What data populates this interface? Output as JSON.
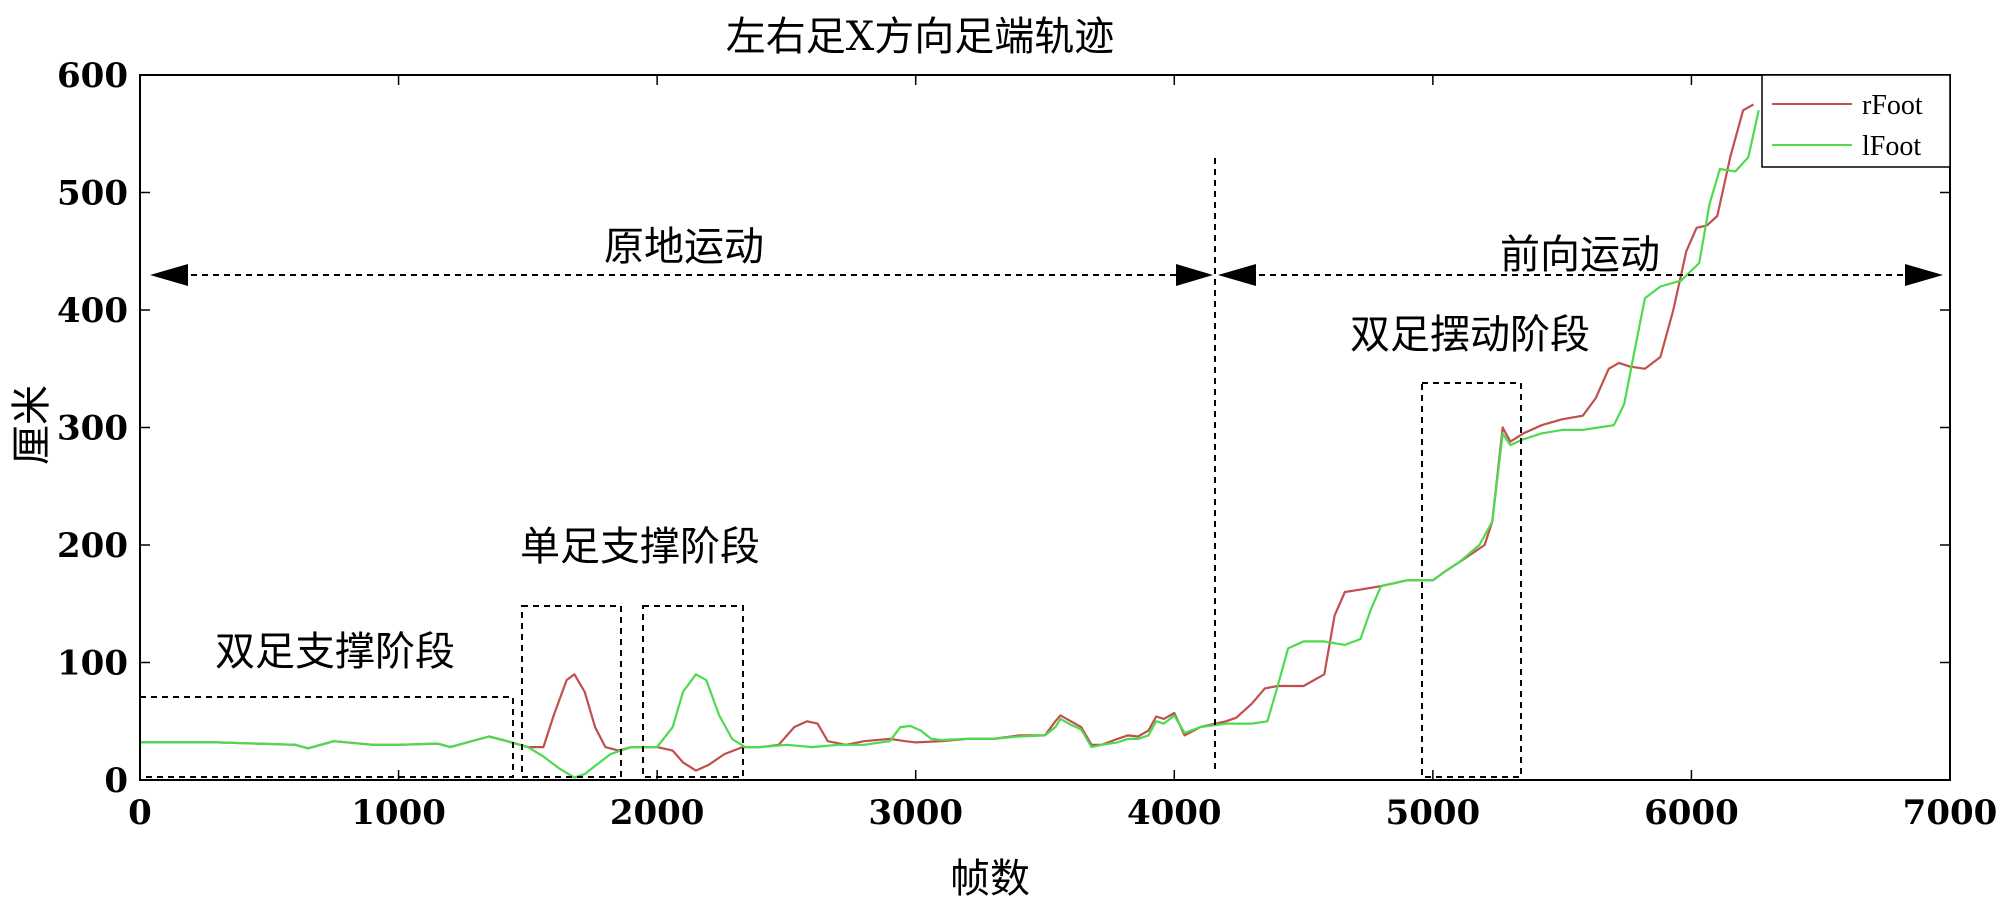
{
  "chart_data": {
    "type": "line",
    "title": "左右足X方向足端轨迹",
    "xlabel": "帧数",
    "ylabel": "厘米",
    "xlim": [
      0,
      7000
    ],
    "ylim": [
      0,
      600
    ],
    "xticks": [
      0,
      1000,
      2000,
      3000,
      4000,
      5000,
      6000,
      7000
    ],
    "yticks": [
      0,
      100,
      200,
      300,
      400,
      500,
      600
    ],
    "grid": false,
    "legend": "top-right",
    "series": [
      {
        "name": "rFoot",
        "color": "#c0504d",
        "points": [
          [
            0,
            32
          ],
          [
            300,
            32
          ],
          [
            600,
            30
          ],
          [
            650,
            27
          ],
          [
            750,
            33
          ],
          [
            900,
            30
          ],
          [
            1000,
            30
          ],
          [
            1150,
            31
          ],
          [
            1200,
            28
          ],
          [
            1300,
            34
          ],
          [
            1350,
            37
          ],
          [
            1420,
            33
          ],
          [
            1500,
            28
          ],
          [
            1560,
            28
          ],
          [
            1600,
            55
          ],
          [
            1650,
            85
          ],
          [
            1680,
            90
          ],
          [
            1720,
            75
          ],
          [
            1760,
            45
          ],
          [
            1800,
            28
          ],
          [
            1850,
            25
          ],
          [
            1900,
            28
          ],
          [
            2000,
            28
          ],
          [
            2060,
            25
          ],
          [
            2100,
            15
          ],
          [
            2150,
            8
          ],
          [
            2200,
            13
          ],
          [
            2260,
            22
          ],
          [
            2330,
            28
          ],
          [
            2400,
            28
          ],
          [
            2470,
            30
          ],
          [
            2530,
            45
          ],
          [
            2580,
            50
          ],
          [
            2620,
            48
          ],
          [
            2660,
            33
          ],
          [
            2730,
            30
          ],
          [
            2800,
            33
          ],
          [
            2900,
            35
          ],
          [
            2960,
            33
          ],
          [
            3000,
            32
          ],
          [
            3100,
            33
          ],
          [
            3200,
            35
          ],
          [
            3300,
            35
          ],
          [
            3400,
            38
          ],
          [
            3500,
            38
          ],
          [
            3540,
            50
          ],
          [
            3560,
            55
          ],
          [
            3600,
            50
          ],
          [
            3640,
            45
          ],
          [
            3680,
            30
          ],
          [
            3720,
            30
          ],
          [
            3780,
            35
          ],
          [
            3820,
            38
          ],
          [
            3860,
            37
          ],
          [
            3900,
            42
          ],
          [
            3930,
            54
          ],
          [
            3960,
            52
          ],
          [
            4000,
            57
          ],
          [
            4040,
            38
          ],
          [
            4100,
            45
          ],
          [
            4200,
            50
          ],
          [
            4240,
            53
          ],
          [
            4300,
            65
          ],
          [
            4350,
            78
          ],
          [
            4400,
            80
          ],
          [
            4500,
            80
          ],
          [
            4580,
            90
          ],
          [
            4620,
            140
          ],
          [
            4660,
            160
          ],
          [
            4720,
            162
          ],
          [
            4800,
            165
          ],
          [
            4900,
            170
          ],
          [
            5000,
            170
          ],
          [
            5050,
            178
          ],
          [
            5100,
            185
          ],
          [
            5200,
            200
          ],
          [
            5230,
            220
          ],
          [
            5270,
            300
          ],
          [
            5300,
            288
          ],
          [
            5350,
            295
          ],
          [
            5420,
            302
          ],
          [
            5500,
            307
          ],
          [
            5580,
            310
          ],
          [
            5630,
            325
          ],
          [
            5680,
            350
          ],
          [
            5720,
            355
          ],
          [
            5760,
            352
          ],
          [
            5820,
            350
          ],
          [
            5880,
            360
          ],
          [
            5930,
            400
          ],
          [
            5980,
            450
          ],
          [
            6020,
            470
          ],
          [
            6060,
            472
          ],
          [
            6100,
            480
          ],
          [
            6150,
            530
          ],
          [
            6200,
            570
          ],
          [
            6240,
            575
          ]
        ]
      },
      {
        "name": "lFoot",
        "color": "#4ddb4d",
        "points": [
          [
            0,
            32
          ],
          [
            300,
            32
          ],
          [
            600,
            30
          ],
          [
            650,
            27
          ],
          [
            750,
            33
          ],
          [
            900,
            30
          ],
          [
            1000,
            30
          ],
          [
            1150,
            31
          ],
          [
            1200,
            28
          ],
          [
            1300,
            34
          ],
          [
            1350,
            37
          ],
          [
            1420,
            33
          ],
          [
            1500,
            28
          ],
          [
            1560,
            20
          ],
          [
            1620,
            10
          ],
          [
            1680,
            2
          ],
          [
            1720,
            5
          ],
          [
            1760,
            12
          ],
          [
            1820,
            22
          ],
          [
            1900,
            28
          ],
          [
            2000,
            28
          ],
          [
            2060,
            45
          ],
          [
            2100,
            75
          ],
          [
            2150,
            90
          ],
          [
            2190,
            85
          ],
          [
            2240,
            55
          ],
          [
            2290,
            35
          ],
          [
            2340,
            28
          ],
          [
            2400,
            28
          ],
          [
            2500,
            30
          ],
          [
            2600,
            28
          ],
          [
            2700,
            30
          ],
          [
            2800,
            30
          ],
          [
            2900,
            33
          ],
          [
            2940,
            45
          ],
          [
            2980,
            46
          ],
          [
            3020,
            42
          ],
          [
            3060,
            35
          ],
          [
            3100,
            34
          ],
          [
            3200,
            35
          ],
          [
            3300,
            35
          ],
          [
            3400,
            37
          ],
          [
            3500,
            38
          ],
          [
            3540,
            45
          ],
          [
            3560,
            52
          ],
          [
            3600,
            47
          ],
          [
            3640,
            43
          ],
          [
            3680,
            28
          ],
          [
            3720,
            30
          ],
          [
            3780,
            32
          ],
          [
            3820,
            35
          ],
          [
            3860,
            35
          ],
          [
            3900,
            38
          ],
          [
            3930,
            50
          ],
          [
            3960,
            48
          ],
          [
            4000,
            55
          ],
          [
            4040,
            40
          ],
          [
            4100,
            45
          ],
          [
            4200,
            48
          ],
          [
            4300,
            48
          ],
          [
            4360,
            50
          ],
          [
            4400,
            80
          ],
          [
            4440,
            112
          ],
          [
            4500,
            118
          ],
          [
            4580,
            118
          ],
          [
            4660,
            115
          ],
          [
            4720,
            120
          ],
          [
            4760,
            145
          ],
          [
            4800,
            165
          ],
          [
            4900,
            170
          ],
          [
            5000,
            170
          ],
          [
            5050,
            178
          ],
          [
            5100,
            185
          ],
          [
            5180,
            200
          ],
          [
            5230,
            220
          ],
          [
            5270,
            295
          ],
          [
            5300,
            285
          ],
          [
            5350,
            290
          ],
          [
            5420,
            295
          ],
          [
            5500,
            298
          ],
          [
            5580,
            298
          ],
          [
            5640,
            300
          ],
          [
            5700,
            302
          ],
          [
            5740,
            320
          ],
          [
            5780,
            365
          ],
          [
            5820,
            410
          ],
          [
            5880,
            420
          ],
          [
            5960,
            425
          ],
          [
            6030,
            440
          ],
          [
            6070,
            490
          ],
          [
            6110,
            520
          ],
          [
            6170,
            518
          ],
          [
            6220,
            530
          ],
          [
            6260,
            570
          ]
        ]
      }
    ],
    "annotations": {
      "double_support": "双足支撑阶段",
      "single_support": "单足支撑阶段",
      "in_place": "原地运动",
      "forward": "前向运动",
      "double_swing": "双足摆动阶段"
    }
  }
}
